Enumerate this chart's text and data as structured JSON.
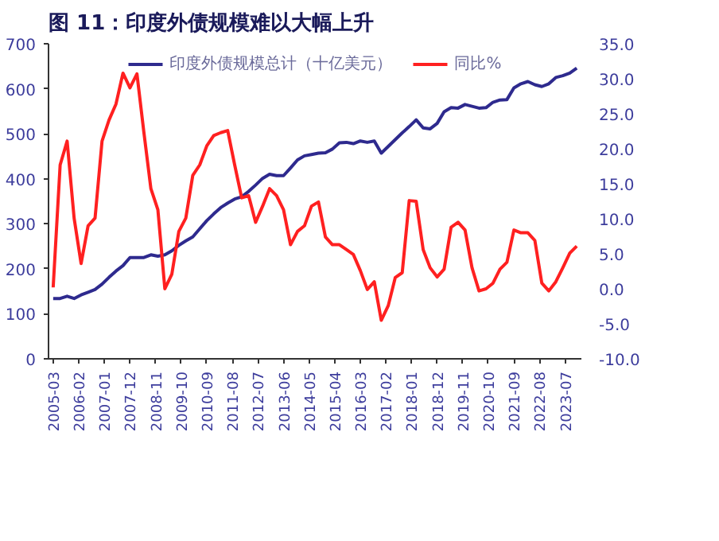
{
  "chart_data": {
    "type": "line",
    "title": "图 11：印度外债规模难以大幅上升",
    "x": [
      "2005-03",
      "2005-06",
      "2005-09",
      "2005-12",
      "2006-03",
      "2006-06",
      "2006-09",
      "2006-12",
      "2007-03",
      "2007-06",
      "2007-09",
      "2007-12",
      "2008-03",
      "2008-06",
      "2008-09",
      "2008-12",
      "2009-03",
      "2009-06",
      "2009-09",
      "2009-12",
      "2010-03",
      "2010-06",
      "2010-09",
      "2010-12",
      "2011-03",
      "2011-06",
      "2011-09",
      "2011-12",
      "2012-03",
      "2012-06",
      "2012-09",
      "2012-12",
      "2013-03",
      "2013-06",
      "2013-09",
      "2013-12",
      "2014-03",
      "2014-06",
      "2014-09",
      "2014-12",
      "2015-03",
      "2015-06",
      "2015-09",
      "2015-12",
      "2016-03",
      "2016-06",
      "2016-09",
      "2016-12",
      "2017-03",
      "2017-06",
      "2017-09",
      "2017-12",
      "2018-03",
      "2018-06",
      "2018-09",
      "2018-12",
      "2019-03",
      "2019-06",
      "2019-09",
      "2019-12",
      "2020-03",
      "2020-06",
      "2020-09",
      "2020-12",
      "2021-03",
      "2021-06",
      "2021-09",
      "2021-12",
      "2022-03",
      "2022-06",
      "2022-09",
      "2022-12",
      "2023-03",
      "2023-06",
      "2023-09",
      "2023-12"
    ],
    "series": [
      {
        "name": "印度外债规模总计（十亿美元）",
        "color": "#2e2a8e",
        "values": [
          134,
          134,
          139,
          134,
          142,
          148,
          154,
          166,
          181,
          195,
          207,
          225,
          225,
          225,
          231,
          228,
          231,
          240,
          252,
          262,
          271,
          289,
          307,
          322,
          336,
          346,
          355,
          360,
          372,
          386,
          401,
          410,
          407,
          407,
          424,
          442,
          451,
          454,
          457,
          458,
          466,
          480,
          481,
          478,
          484,
          481,
          484,
          457,
          472,
          487,
          502,
          516,
          531,
          513,
          511,
          523,
          549,
          558,
          557,
          565,
          561,
          557,
          558,
          570,
          575,
          576,
          602,
          611,
          616,
          609,
          605,
          611,
          625,
          629,
          635,
          646
        ]
      },
      {
        "name": "同比%",
        "color": "#ff2020",
        "axis": "y2",
        "values": [
          0.2,
          17.7,
          21.1,
          10.1,
          3.6,
          9.0,
          10.1,
          21.1,
          24.1,
          26.4,
          30.8,
          28.7,
          30.7,
          22.3,
          14.3,
          11.3,
          0.0,
          2.1,
          8.2,
          10.1,
          16.2,
          17.7,
          20.4,
          21.9,
          22.3,
          22.6,
          17.7,
          13.0,
          13.3,
          9.5,
          11.8,
          14.3,
          13.3,
          11.3,
          6.3,
          8.2,
          9.0,
          11.8,
          12.4,
          7.4,
          6.3,
          6.3,
          5.6,
          4.9,
          2.6,
          -0.1,
          1.0,
          -4.5,
          -2.4,
          1.6,
          2.3,
          12.6,
          12.5,
          5.6,
          3.0,
          1.7,
          2.8,
          8.8,
          9.5,
          8.4,
          3.0,
          -0.3,
          0.0,
          0.8,
          2.8,
          3.8,
          8.4,
          8.0,
          8.0,
          6.9,
          0.8,
          -0.3,
          1.0,
          3.0,
          5.1,
          6.1
        ]
      }
    ],
    "xlim": [
      "2005-01",
      "2024-02"
    ],
    "xticks": [
      "2005-03",
      "2006-02",
      "2007-01",
      "2007-12",
      "2008-11",
      "2009-10",
      "2010-09",
      "2011-08",
      "2012-07",
      "2013-06",
      "2014-05",
      "2015-04",
      "2016-03",
      "2017-02",
      "2018-01",
      "2018-12",
      "2019-11",
      "2020-10",
      "2021-09",
      "2022-08",
      "2023-07"
    ],
    "ylim": [
      0,
      700
    ],
    "yticks": [
      0,
      100,
      200,
      300,
      400,
      500,
      600,
      700
    ],
    "y2lim": [
      -10,
      35
    ],
    "y2ticks": [
      {
        "value": -10,
        "label": "-10.0"
      },
      {
        "value": -5,
        "label": "-5.0"
      },
      {
        "value": 0,
        "label": "0.0"
      },
      {
        "value": 5,
        "label": "5.0"
      },
      {
        "value": 10,
        "label": "10.0"
      },
      {
        "value": 15,
        "label": "15.0"
      },
      {
        "value": 20,
        "label": "20.0"
      },
      {
        "value": 25,
        "label": "25.0"
      },
      {
        "value": 30,
        "label": "30.0"
      },
      {
        "value": 35,
        "label": "35.0"
      }
    ],
    "grid": false,
    "legend": "top",
    "marker": "none",
    "line_style": "solid"
  }
}
